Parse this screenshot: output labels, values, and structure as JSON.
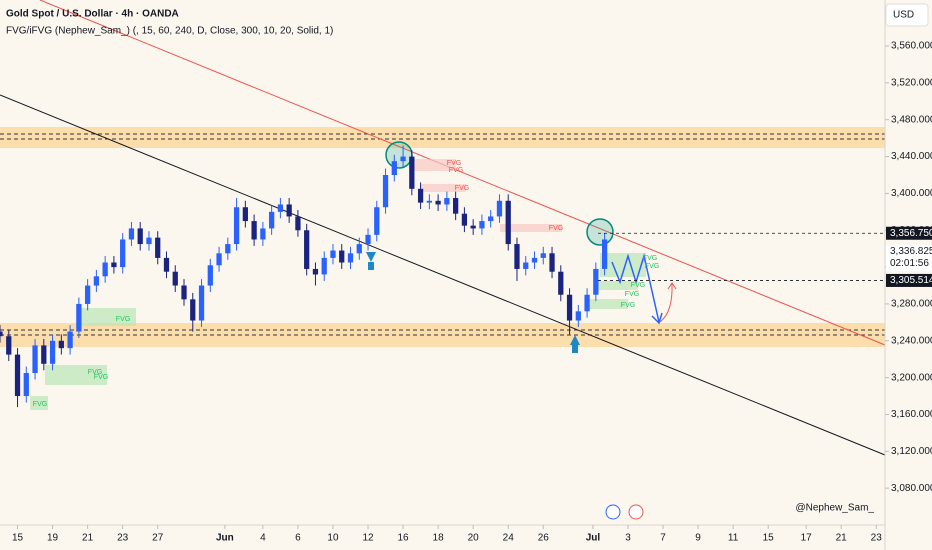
{
  "chart_data": {
    "type": "candlestick",
    "title": "Gold Spot / U.S. Dollar · 4h · OANDA",
    "subtitle": "FVG/iFVG (Nephew_Sam_) (, 15, 60, 240, D, Close, 300, 10, 20, Solid, 1)",
    "currency": "USD",
    "x": [
      0,
      3,
      6,
      9,
      12,
      15,
      18,
      21,
      24,
      27,
      30,
      33,
      36,
      39,
      42,
      45,
      48,
      51,
      54,
      57,
      60,
      63,
      66,
      69,
      72,
      75,
      78,
      81,
      84,
      87,
      90,
      93,
      96,
      99,
      102,
      105,
      108,
      111,
      114,
      117,
      120,
      123,
      126,
      129,
      132,
      135,
      138,
      141,
      144,
      147,
      150,
      153,
      156,
      159,
      162,
      165,
      168,
      171,
      174,
      177,
      180,
      183,
      186,
      189,
      192,
      195,
      198,
      201,
      204,
      207
    ],
    "open": [
      3250,
      3245,
      3225,
      3180,
      3205,
      3235,
      3215,
      3240,
      3232,
      3250,
      3280,
      3300,
      3310,
      3325,
      3320,
      3350,
      3362,
      3345,
      3352,
      3330,
      3315,
      3300,
      3285,
      3262,
      3300,
      3322,
      3335,
      3345,
      3385,
      3370,
      3350,
      3362,
      3380,
      3388,
      3375,
      3360,
      3318,
      3312,
      3330,
      3338,
      3325,
      3335,
      3345,
      3355,
      3385,
      3420,
      3435,
      3440,
      3405,
      3390,
      3392,
      3388,
      3395,
      3378,
      3365,
      3362,
      3370,
      3375,
      3392,
      3345,
      3318,
      3325,
      3330,
      3335,
      3315,
      3290,
      3262,
      3272,
      3290,
      3318
    ],
    "high": [
      3257,
      3252,
      3232,
      3212,
      3242,
      3242,
      3247,
      3247,
      3257,
      3287,
      3307,
      3317,
      3332,
      3332,
      3357,
      3369,
      3369,
      3359,
      3359,
      3337,
      3322,
      3307,
      3292,
      3307,
      3329,
      3342,
      3352,
      3395,
      3392,
      3377,
      3369,
      3387,
      3395,
      3395,
      3382,
      3367,
      3325,
      3337,
      3345,
      3345,
      3342,
      3352,
      3362,
      3392,
      3427,
      3442,
      3452,
      3447,
      3412,
      3399,
      3399,
      3402,
      3402,
      3385,
      3372,
      3377,
      3382,
      3399,
      3399,
      3352,
      3332,
      3337,
      3342,
      3342,
      3322,
      3297,
      3279,
      3297,
      3325,
      3357
    ],
    "low": [
      3238,
      3218,
      3168,
      3173,
      3198,
      3208,
      3208,
      3225,
      3225,
      3243,
      3273,
      3293,
      3303,
      3313,
      3313,
      3343,
      3338,
      3338,
      3323,
      3308,
      3293,
      3278,
      3250,
      3255,
      3293,
      3315,
      3328,
      3338,
      3363,
      3343,
      3343,
      3355,
      3373,
      3368,
      3353,
      3311,
      3300,
      3305,
      3323,
      3318,
      3318,
      3328,
      3338,
      3348,
      3378,
      3413,
      3428,
      3398,
      3383,
      3383,
      3381,
      3381,
      3371,
      3358,
      3355,
      3355,
      3363,
      3368,
      3338,
      3305,
      3311,
      3318,
      3323,
      3308,
      3283,
      3247,
      3255,
      3265,
      3283,
      3311
    ],
    "close": [
      3245,
      3225,
      3180,
      3205,
      3235,
      3215,
      3240,
      3232,
      3250,
      3280,
      3300,
      3310,
      3325,
      3320,
      3350,
      3362,
      3345,
      3352,
      3330,
      3315,
      3300,
      3285,
      3262,
      3300,
      3322,
      3335,
      3345,
      3385,
      3370,
      3350,
      3362,
      3380,
      3388,
      3375,
      3360,
      3318,
      3312,
      3330,
      3338,
      3325,
      3335,
      3345,
      3355,
      3385,
      3420,
      3435,
      3440,
      3405,
      3390,
      3392,
      3388,
      3395,
      3378,
      3365,
      3362,
      3370,
      3375,
      3392,
      3345,
      3318,
      3325,
      3330,
      3335,
      3315,
      3290,
      3262,
      3272,
      3290,
      3318,
      3350
    ],
    "up_color": "#2962ff",
    "down_color": "#1a237e",
    "xlim": [
      0,
      303
    ],
    "ylim": [
      3040,
      3610
    ],
    "grid": false,
    "xticks": [
      {
        "value": 6,
        "label": "15"
      },
      {
        "value": 18,
        "label": "19"
      },
      {
        "value": 30,
        "label": "21"
      },
      {
        "value": 42,
        "label": "23"
      },
      {
        "value": 54,
        "label": "27"
      },
      {
        "value": 77,
        "label": "Jun"
      },
      {
        "value": 90,
        "label": "4"
      },
      {
        "value": 102,
        "label": "6"
      },
      {
        "value": 114,
        "label": "10"
      },
      {
        "value": 126,
        "label": "12"
      },
      {
        "value": 138,
        "label": "16"
      },
      {
        "value": 150,
        "label": "18"
      },
      {
        "value": 162,
        "label": "20"
      },
      {
        "value": 174,
        "label": "24"
      },
      {
        "value": 186,
        "label": "26"
      },
      {
        "value": 203,
        "label": "Jul"
      },
      {
        "value": 215,
        "label": "3"
      },
      {
        "value": 227,
        "label": "7"
      },
      {
        "value": 239,
        "label": "9"
      },
      {
        "value": 251,
        "label": "11"
      },
      {
        "value": 263,
        "label": "15"
      },
      {
        "value": 276,
        "label": "17"
      },
      {
        "value": 288,
        "label": "21"
      },
      {
        "value": 300,
        "label": "23"
      }
    ],
    "yticks": [
      {
        "value": 3080,
        "label": "3,080.000"
      },
      {
        "value": 3120,
        "label": "3,120.000"
      },
      {
        "value": 3160,
        "label": "3,160.000"
      },
      {
        "value": 3200,
        "label": "3,200.000"
      },
      {
        "value": 3240,
        "label": "3,240.000"
      },
      {
        "value": 3280,
        "label": "3,280.000"
      },
      {
        "value": 3320,
        "label": "3,320.000"
      },
      {
        "value": 3360,
        "label": "3,360.000"
      },
      {
        "value": 3400,
        "label": "3,400.000"
      },
      {
        "value": 3440,
        "label": "3,440.000"
      },
      {
        "value": 3480,
        "label": "3,480.000"
      },
      {
        "value": 3520,
        "label": "3,520.000"
      },
      {
        "value": 3560,
        "label": "3,560.000"
      }
    ],
    "price_tags": [
      {
        "value": 3356.75,
        "label": "3,356.750"
      },
      {
        "value": 3336.825,
        "label": "3,336.825"
      },
      {
        "value": 3305.514,
        "label": "3,305.514"
      }
    ],
    "countdown": "02:01:56",
    "annotations": [
      "FVG",
      "FVG",
      "FVG",
      "FVG",
      "FVG",
      "FVG",
      "FVG",
      "FVG",
      "FVG",
      "FVG",
      "FVG",
      "FVG",
      "FVG"
    ],
    "watermark": "@Nephew_Sam_"
  }
}
